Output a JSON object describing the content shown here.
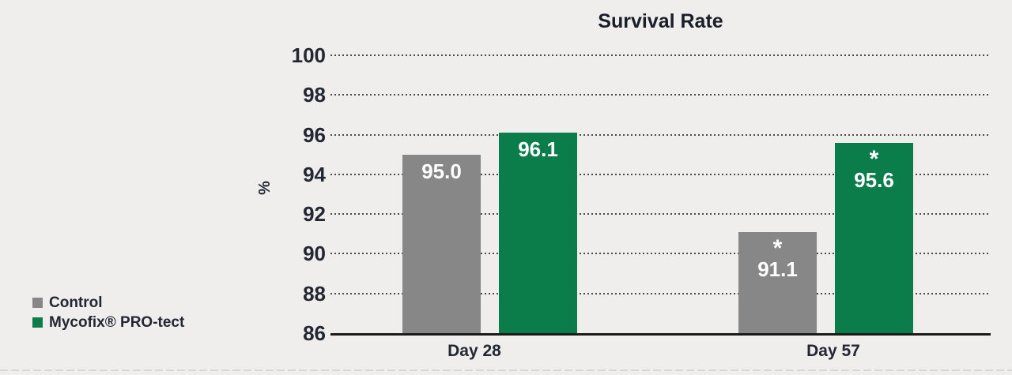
{
  "chart_data": {
    "type": "bar",
    "title": "Survival Rate",
    "ylabel": "%",
    "ylim": [
      86,
      100
    ],
    "yticks": [
      100,
      98,
      96,
      94,
      92,
      90,
      88,
      86
    ],
    "categories": [
      "Day 28",
      "Day 57"
    ],
    "series": [
      {
        "name": "Control",
        "color": "#878787",
        "values": [
          95.0,
          91.1
        ],
        "value_labels": [
          "95.0",
          "91.1"
        ],
        "significance": [
          "",
          "*"
        ]
      },
      {
        "name": "Mycofix® PRO-tect",
        "color": "#0b7d4a",
        "values": [
          96.1,
          95.6
        ],
        "value_labels": [
          "96.1",
          "95.6"
        ],
        "significance": [
          "",
          "*"
        ]
      }
    ],
    "grid": "horizontal-dotted",
    "legend_position": "bottom-left",
    "bar_label_color": "#ffffff"
  },
  "legend": {
    "items": [
      {
        "label": "Control",
        "swatch_color": "#878787"
      },
      {
        "label": "Mycofix® PRO-tect",
        "swatch_color": "#0b7d4a"
      }
    ]
  },
  "colors": {
    "background": "#efeeec",
    "axis_line": "#1b1b19",
    "grid_dots": "#4a4a4a",
    "text": "#222733"
  }
}
